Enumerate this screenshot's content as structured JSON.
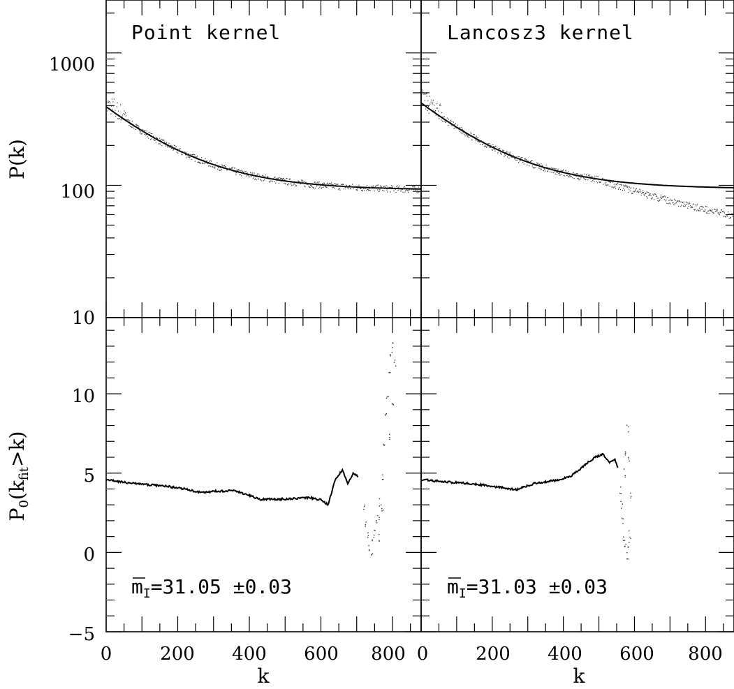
{
  "panels": [
    {
      "title": "Point kernel",
      "annotation": {
        "base": "m",
        "sub": "I",
        "value": "=31.05 ±0.03"
      },
      "pk_fit": {
        "A": 300,
        "B": 9e-06,
        "C": 92
      },
      "pk_data_seed": 7,
      "p0_curve": [
        [
          0,
          4.6
        ],
        [
          40,
          4.45
        ],
        [
          100,
          4.3
        ],
        [
          160,
          4.2
        ],
        [
          220,
          4.0
        ],
        [
          270,
          3.75
        ],
        [
          300,
          3.85
        ],
        [
          360,
          3.9
        ],
        [
          400,
          3.6
        ],
        [
          430,
          3.35
        ],
        [
          480,
          3.35
        ],
        [
          530,
          3.4
        ],
        [
          570,
          3.45
        ],
        [
          600,
          3.3
        ],
        [
          620,
          3.0
        ],
        [
          640,
          4.6
        ],
        [
          660,
          5.2
        ],
        [
          675,
          4.3
        ],
        [
          690,
          5.0
        ],
        [
          705,
          4.8
        ]
      ],
      "p0_scatter": [
        [
          720,
          2.8
        ],
        [
          725,
          1.8
        ],
        [
          730,
          1.0
        ],
        [
          735,
          0.4
        ],
        [
          740,
          -0.3
        ],
        [
          745,
          0.7
        ],
        [
          750,
          1.2
        ],
        [
          755,
          1.8
        ],
        [
          760,
          2.3
        ],
        [
          765,
          3.2
        ],
        [
          770,
          4.8
        ],
        [
          775,
          6.8
        ],
        [
          780,
          8.5
        ],
        [
          785,
          9.8
        ],
        [
          790,
          11.2
        ],
        [
          795,
          12.5
        ],
        [
          800,
          13.2
        ],
        [
          805,
          12.0
        ],
        [
          790,
          7.2
        ],
        [
          800,
          9.6
        ],
        [
          770,
          2.5
        ],
        [
          760,
          0.9
        ]
      ]
    },
    {
      "title": "Lancosz3 kernel",
      "annotation": {
        "base": "m",
        "sub": "I",
        "value": "=31.03 ±0.03"
      },
      "pk_fit": {
        "A": 325,
        "B": 1.2e-05,
        "C": 94
      },
      "pk_data_decline": true,
      "pk_data_seed": 13,
      "p0_curve": [
        [
          0,
          4.6
        ],
        [
          40,
          4.5
        ],
        [
          100,
          4.4
        ],
        [
          160,
          4.3
        ],
        [
          200,
          4.15
        ],
        [
          240,
          4.05
        ],
        [
          270,
          3.95
        ],
        [
          290,
          4.15
        ],
        [
          320,
          4.35
        ],
        [
          380,
          4.55
        ],
        [
          420,
          4.8
        ],
        [
          450,
          5.3
        ],
        [
          470,
          5.7
        ],
        [
          490,
          6.0
        ],
        [
          510,
          6.2
        ],
        [
          530,
          5.7
        ],
        [
          545,
          5.9
        ],
        [
          555,
          5.2
        ]
      ],
      "p0_scatter": [
        [
          560,
          4.0
        ],
        [
          563,
          3.0
        ],
        [
          566,
          2.0
        ],
        [
          570,
          1.0
        ],
        [
          574,
          0.3
        ],
        [
          578,
          -0.2
        ],
        [
          582,
          0.5
        ],
        [
          586,
          1.2
        ],
        [
          570,
          5.0
        ],
        [
          575,
          6.3
        ],
        [
          580,
          7.8
        ],
        [
          585,
          6.0
        ],
        [
          588,
          3.6
        ]
      ]
    }
  ],
  "chart_data": [
    {
      "type": "scatter",
      "title": "Point kernel",
      "xlabel": "k",
      "ylabel": "P(k)",
      "yscale": "log",
      "xlim": [
        0,
        880
      ],
      "ylim": [
        10,
        3000
      ],
      "yticks": [
        10,
        100,
        1000
      ],
      "series": [
        {
          "kind": "data",
          "x": [
            0,
            100,
            200,
            300,
            400,
            500,
            600,
            700,
            800,
            880
          ],
          "y": [
            400,
            290,
            205,
            150,
            120,
            105,
            98,
            95,
            93,
            92
          ]
        },
        {
          "kind": "fit",
          "x": [
            0,
            100,
            200,
            300,
            400,
            500,
            600,
            700,
            800,
            880
          ],
          "y": [
            392,
            293,
            200,
            150,
            118,
            104,
            98,
            95,
            93,
            92
          ]
        }
      ]
    },
    {
      "type": "scatter",
      "title": "Lancosz3 kernel",
      "xlabel": "k",
      "ylabel": "P(k)",
      "yscale": "log",
      "xlim": [
        0,
        880
      ],
      "ylim": [
        10,
        3000
      ],
      "yticks": [
        10,
        100,
        1000
      ],
      "series": [
        {
          "kind": "data",
          "x": [
            0,
            100,
            200,
            300,
            400,
            500,
            600,
            700,
            800,
            880
          ],
          "y": [
            430,
            300,
            200,
            150,
            125,
            113,
            105,
            95,
            75,
            60
          ]
        },
        {
          "kind": "fit",
          "x": [
            0,
            100,
            200,
            300,
            400,
            500,
            600,
            700,
            800,
            880
          ],
          "y": [
            419,
            299,
            208,
            150,
            120,
            107,
            101,
            98,
            96,
            95
          ]
        }
      ]
    },
    {
      "type": "line",
      "xlabel": "k",
      "ylabel": "P0(kfit>k)",
      "xlim": [
        0,
        880
      ],
      "ylim": [
        -5,
        15
      ],
      "xticks": [
        0,
        200,
        400,
        600,
        800
      ],
      "yticks": [
        -5,
        0,
        5,
        10
      ],
      "series": [
        {
          "kind": "Point kernel",
          "x": [
            0,
            100,
            200,
            300,
            400,
            500,
            600,
            660,
            700,
            740,
            800
          ],
          "y": [
            4.6,
            4.3,
            4.1,
            3.85,
            3.6,
            3.35,
            3.3,
            5.2,
            4.8,
            0.5,
            13.0
          ]
        }
      ]
    },
    {
      "type": "line",
      "xlabel": "k",
      "ylabel": "P0(kfit>k)",
      "xlim": [
        0,
        880
      ],
      "ylim": [
        -5,
        15
      ],
      "xticks": [
        0,
        200,
        400,
        600,
        800
      ],
      "yticks": [
        -5,
        0,
        5,
        10
      ],
      "series": [
        {
          "kind": "Lancosz3 kernel",
          "x": [
            0,
            100,
            200,
            300,
            400,
            500,
            550,
            580
          ],
          "y": [
            4.6,
            4.4,
            4.15,
            4.1,
            4.6,
            6.2,
            5.5,
            0.3
          ]
        }
      ]
    }
  ],
  "axes": {
    "x_ticks": [
      "0",
      "200",
      "400",
      "600",
      "800"
    ],
    "x_label": "k",
    "y_top_ticks": [
      "1000",
      "100",
      "10"
    ],
    "y_top_label": "P(k)",
    "y_bottom_ticks": [
      "10",
      "5",
      "0",
      "−5"
    ],
    "y_bottom_label": {
      "p": "P",
      "sub0": "0",
      "open": "(k",
      "subfit": "fit",
      "close": ">k)"
    }
  }
}
